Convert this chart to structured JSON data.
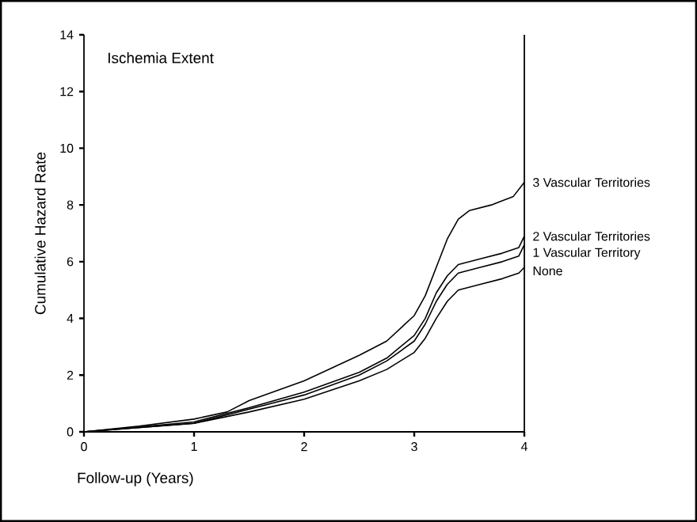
{
  "chart_data": {
    "type": "line",
    "xlabel": "Follow-up (Years)",
    "ylabel": "Cumulative Hazard Rate",
    "annotations": [
      "Ischemia Extent"
    ],
    "xlim": [
      0,
      4
    ],
    "ylim": [
      0,
      14
    ],
    "xticks": [
      0,
      1,
      2,
      3,
      4
    ],
    "yticks": [
      0,
      2,
      4,
      6,
      8,
      10,
      12,
      14
    ],
    "grid": false,
    "marker": "none",
    "line_style": "solid",
    "series": [
      {
        "name": "3 Vascular Territories",
        "color": "#000000",
        "x": [
          0,
          0.5,
          1,
          1.3,
          1.5,
          2,
          2.5,
          2.75,
          3,
          3.1,
          3.2,
          3.3,
          3.4,
          3.5,
          3.7,
          3.9,
          4
        ],
        "values": [
          0,
          0.2,
          0.45,
          0.7,
          1.1,
          1.8,
          2.7,
          3.2,
          4.1,
          4.8,
          5.8,
          6.8,
          7.5,
          7.8,
          8.0,
          8.3,
          8.8
        ]
      },
      {
        "name": "2 Vascular Territories",
        "color": "#000000",
        "x": [
          0,
          1,
          1.5,
          2,
          2.5,
          2.75,
          3,
          3.1,
          3.2,
          3.3,
          3.4,
          3.6,
          3.8,
          3.95,
          4
        ],
        "values": [
          0,
          0.35,
          0.85,
          1.4,
          2.1,
          2.6,
          3.4,
          4.0,
          4.9,
          5.5,
          5.9,
          6.1,
          6.3,
          6.5,
          6.9
        ]
      },
      {
        "name": "1 Vascular Territory",
        "color": "#000000",
        "x": [
          0,
          1,
          1.5,
          2,
          2.5,
          2.75,
          3,
          3.1,
          3.2,
          3.3,
          3.4,
          3.6,
          3.8,
          3.95,
          4
        ],
        "values": [
          0,
          0.3,
          0.8,
          1.3,
          2.0,
          2.5,
          3.2,
          3.8,
          4.6,
          5.2,
          5.6,
          5.8,
          6.0,
          6.2,
          6.6
        ]
      },
      {
        "name": "None",
        "color": "#000000",
        "x": [
          0,
          1,
          1.5,
          2,
          2.5,
          2.75,
          3,
          3.1,
          3.2,
          3.3,
          3.4,
          3.6,
          3.8,
          3.95,
          4
        ],
        "values": [
          0,
          0.3,
          0.7,
          1.15,
          1.8,
          2.2,
          2.8,
          3.3,
          4.0,
          4.6,
          5.0,
          5.2,
          5.4,
          5.6,
          5.8
        ]
      }
    ]
  }
}
